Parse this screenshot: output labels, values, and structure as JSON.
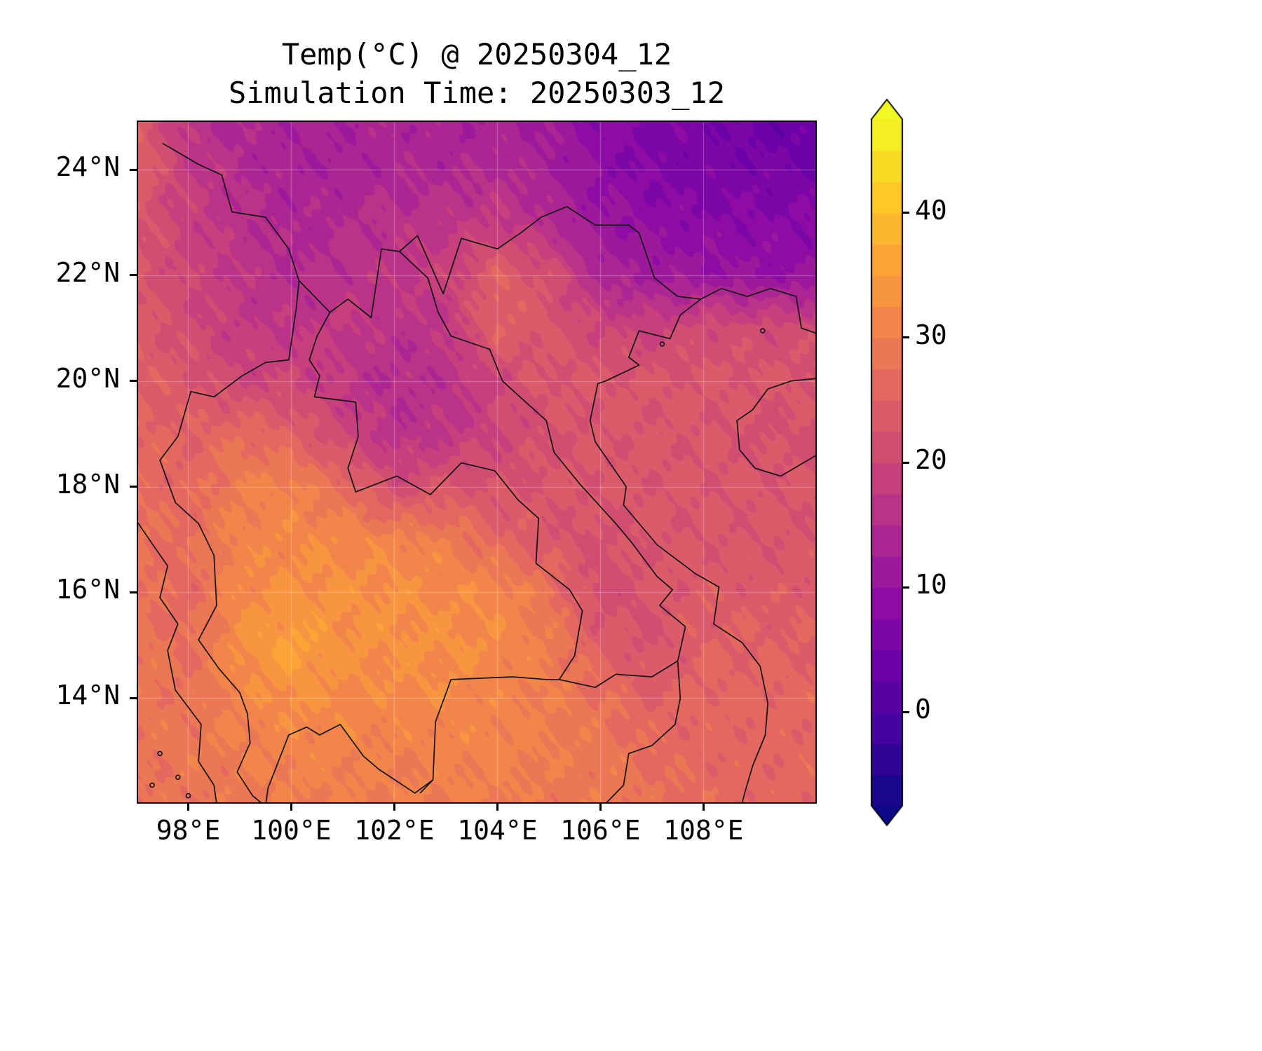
{
  "figure": {
    "background": "#ffffff"
  },
  "chart_data": {
    "type": "heatmap",
    "title": "Temp(°C) @ 20250304_12",
    "subtitle": "Simulation Time: 20250303_12",
    "xlabel": "",
    "ylabel": "",
    "grid_on": true,
    "extent": {
      "lon_min": 97.0,
      "lon_max": 110.2,
      "lat_min": 12.0,
      "lat_max": 24.93
    },
    "x_ticks": [
      {
        "lon": 98,
        "label": "98°E"
      },
      {
        "lon": 100,
        "label": "100°E"
      },
      {
        "lon": 102,
        "label": "102°E"
      },
      {
        "lon": 104,
        "label": "104°E"
      },
      {
        "lon": 106,
        "label": "106°E"
      },
      {
        "lon": 108,
        "label": "108°E"
      }
    ],
    "y_ticks": [
      {
        "lat": 14,
        "label": "14°N"
      },
      {
        "lat": 16,
        "label": "16°N"
      },
      {
        "lat": 18,
        "label": "18°N"
      },
      {
        "lat": 20,
        "label": "20°N"
      },
      {
        "lat": 22,
        "label": "22°N"
      },
      {
        "lat": 24,
        "label": "24°N"
      }
    ],
    "levels": {
      "vmin": -7.5,
      "vmax": 47.5,
      "step": 2.5,
      "extend": "both"
    },
    "colorbar": {
      "position": "right",
      "ticks": [
        {
          "value": 0,
          "label": "0"
        },
        {
          "value": 10,
          "label": "10"
        },
        {
          "value": 20,
          "label": "20"
        },
        {
          "value": 30,
          "label": "30"
        },
        {
          "value": 40,
          "label": "40"
        }
      ]
    },
    "colormap": {
      "name": "plasma",
      "anchors": [
        [
          0.0,
          "#0d0887"
        ],
        [
          0.1,
          "#41049d"
        ],
        [
          0.2,
          "#6a00a8"
        ],
        [
          0.3,
          "#8f0da4"
        ],
        [
          0.4,
          "#b12a90"
        ],
        [
          0.5,
          "#cc4778"
        ],
        [
          0.6,
          "#e16462"
        ],
        [
          0.7,
          "#f2844b"
        ],
        [
          0.8,
          "#fca636"
        ],
        [
          0.9,
          "#fcce25"
        ],
        [
          1.0,
          "#f0f921"
        ]
      ]
    },
    "grid": {
      "lons": [
        97,
        98,
        99,
        100,
        101,
        102,
        103,
        104,
        105,
        106,
        107,
        108,
        109,
        110
      ],
      "lats": [
        25,
        24,
        23,
        22,
        21,
        20,
        19,
        18,
        17,
        16,
        15,
        14,
        13,
        12
      ],
      "temps_c": [
        [
          25,
          16,
          14,
          13,
          13,
          14,
          13,
          13,
          12,
          8,
          7,
          6,
          4,
          3
        ],
        [
          25,
          18,
          15,
          13,
          13,
          14,
          14,
          15,
          13,
          9,
          7,
          6,
          6,
          5
        ],
        [
          23,
          19,
          16,
          14,
          15,
          16,
          17,
          18,
          15,
          11,
          9,
          8,
          8,
          8
        ],
        [
          23,
          20,
          17,
          15,
          16,
          17,
          19,
          25,
          22,
          14,
          12,
          11,
          10,
          10
        ],
        [
          24,
          21,
          18,
          17,
          18,
          16,
          17,
          25,
          23,
          20,
          19,
          21,
          21,
          21
        ],
        [
          25,
          23,
          20,
          20,
          17,
          15,
          16,
          20,
          23,
          23,
          23,
          23,
          23,
          23
        ],
        [
          26,
          25,
          27,
          25,
          20,
          16,
          17,
          20,
          22,
          23,
          23,
          23,
          22,
          22
        ],
        [
          27,
          26,
          30,
          31,
          27,
          21,
          23,
          22,
          23,
          23,
          23,
          23,
          23,
          23
        ],
        [
          28,
          27,
          31,
          32,
          32,
          31,
          30,
          26,
          23,
          22,
          23,
          23,
          23,
          23
        ],
        [
          28,
          26,
          32,
          33,
          33,
          33,
          32,
          32,
          28,
          21,
          23,
          24,
          24,
          24
        ],
        [
          29,
          27,
          33,
          36,
          33,
          33,
          33,
          32,
          30,
          24,
          22,
          25,
          25,
          25
        ],
        [
          29,
          28,
          31,
          33,
          32,
          32,
          32,
          31,
          30,
          28,
          25,
          26,
          26,
          26
        ],
        [
          28,
          29,
          30,
          31,
          31,
          30,
          31,
          31,
          30,
          29,
          27,
          26,
          26,
          26
        ],
        [
          28,
          28,
          29,
          30,
          30,
          30,
          30,
          30,
          29,
          29,
          28,
          27,
          26,
          26
        ]
      ]
    },
    "noise": {
      "amplitude": 1.25
    },
    "overlays": {
      "borders": [
        [
          [
            97.5,
            24.5
          ],
          [
            98.2,
            24.1
          ],
          [
            98.65,
            23.9
          ],
          [
            98.85,
            23.2
          ],
          [
            99.5,
            23.1
          ],
          [
            99.95,
            22.5
          ],
          [
            100.15,
            21.9
          ],
          [
            100.75,
            21.3
          ],
          [
            101.1,
            21.55
          ],
          [
            101.55,
            21.2
          ],
          [
            101.75,
            22.5
          ],
          [
            102.1,
            22.45
          ],
          [
            102.45,
            22.75
          ],
          [
            102.95,
            21.65
          ],
          [
            103.3,
            22.7
          ],
          [
            104.0,
            22.5
          ],
          [
            104.45,
            22.8
          ],
          [
            104.85,
            23.1
          ],
          [
            105.35,
            23.3
          ],
          [
            105.9,
            22.95
          ],
          [
            106.55,
            22.95
          ],
          [
            106.75,
            22.8
          ],
          [
            107.05,
            21.95
          ],
          [
            107.5,
            21.6
          ],
          [
            107.95,
            21.55
          ]
        ],
        [
          [
            100.15,
            21.9
          ],
          [
            100.1,
            21.4
          ],
          [
            99.95,
            20.4
          ],
          [
            99.5,
            20.35
          ],
          [
            99.05,
            20.1
          ],
          [
            98.5,
            19.7
          ],
          [
            98.05,
            19.8
          ],
          [
            97.8,
            18.95
          ],
          [
            97.45,
            18.5
          ],
          [
            97.75,
            17.7
          ],
          [
            98.2,
            17.3
          ],
          [
            98.5,
            16.7
          ],
          [
            98.55,
            15.75
          ],
          [
            98.2,
            15.1
          ],
          [
            98.6,
            14.55
          ],
          [
            99.0,
            14.1
          ],
          [
            99.15,
            13.7
          ],
          [
            99.2,
            13.15
          ],
          [
            98.95,
            12.6
          ],
          [
            99.25,
            12.15
          ],
          [
            99.5,
            11.95
          ]
        ],
        [
          [
            100.75,
            21.3
          ],
          [
            100.5,
            20.85
          ],
          [
            100.35,
            20.4
          ],
          [
            100.55,
            20.1
          ],
          [
            100.45,
            19.7
          ],
          [
            101.25,
            19.6
          ],
          [
            101.3,
            18.95
          ],
          [
            101.1,
            18.35
          ],
          [
            101.25,
            17.9
          ],
          [
            102.05,
            18.2
          ],
          [
            102.7,
            17.85
          ],
          [
            103.3,
            18.45
          ],
          [
            103.95,
            18.3
          ],
          [
            104.4,
            17.75
          ],
          [
            104.8,
            17.4
          ],
          [
            104.75,
            16.55
          ],
          [
            105.4,
            16.05
          ],
          [
            105.65,
            15.65
          ],
          [
            105.5,
            14.8
          ],
          [
            105.2,
            14.35
          ]
        ],
        [
          [
            102.1,
            22.45
          ],
          [
            102.65,
            21.95
          ],
          [
            102.85,
            21.3
          ],
          [
            103.1,
            20.85
          ],
          [
            103.85,
            20.6
          ],
          [
            104.1,
            20.0
          ],
          [
            104.55,
            19.6
          ],
          [
            104.95,
            19.25
          ],
          [
            105.1,
            18.65
          ],
          [
            105.6,
            18.05
          ],
          [
            106.3,
            17.3
          ],
          [
            106.6,
            16.95
          ],
          [
            107.1,
            16.3
          ],
          [
            107.4,
            16.05
          ],
          [
            107.15,
            15.75
          ],
          [
            107.65,
            15.35
          ],
          [
            107.5,
            14.7
          ]
        ],
        [
          [
            102.5,
            12.2
          ],
          [
            102.75,
            12.45
          ],
          [
            102.8,
            13.55
          ],
          [
            103.1,
            14.35
          ],
          [
            104.3,
            14.4
          ],
          [
            104.95,
            14.35
          ],
          [
            105.2,
            14.35
          ]
        ],
        [
          [
            105.2,
            14.35
          ],
          [
            105.9,
            14.2
          ],
          [
            106.3,
            14.45
          ],
          [
            107.0,
            14.4
          ],
          [
            107.5,
            14.7
          ]
        ],
        [
          [
            107.5,
            14.7
          ],
          [
            107.55,
            14.0
          ],
          [
            107.45,
            13.5
          ],
          [
            107.0,
            13.1
          ],
          [
            106.55,
            12.95
          ],
          [
            106.45,
            12.35
          ],
          [
            106.1,
            12.0
          ]
        ]
      ],
      "coastlines": [
        [
          [
            107.95,
            21.55
          ],
          [
            107.55,
            21.25
          ],
          [
            107.35,
            20.8
          ],
          [
            106.75,
            20.95
          ],
          [
            106.55,
            20.45
          ],
          [
            106.75,
            20.3
          ],
          [
            106.1,
            20.0
          ],
          [
            105.95,
            19.95
          ],
          [
            105.8,
            19.25
          ],
          [
            105.9,
            18.85
          ],
          [
            106.5,
            18.0
          ],
          [
            106.45,
            17.65
          ],
          [
            107.1,
            16.9
          ],
          [
            107.85,
            16.35
          ],
          [
            108.3,
            16.1
          ],
          [
            108.2,
            15.4
          ],
          [
            108.75,
            15.05
          ],
          [
            109.1,
            14.6
          ],
          [
            109.25,
            13.9
          ],
          [
            109.2,
            13.3
          ],
          [
            108.95,
            12.7
          ],
          [
            108.8,
            12.2
          ],
          [
            108.75,
            12.0
          ]
        ],
        [
          [
            107.95,
            21.55
          ],
          [
            108.35,
            21.75
          ],
          [
            108.85,
            21.6
          ],
          [
            109.3,
            21.75
          ],
          [
            109.8,
            21.6
          ],
          [
            109.9,
            21.0
          ],
          [
            110.2,
            20.9
          ]
        ],
        [
          [
            110.2,
            20.05
          ],
          [
            109.7,
            20.0
          ],
          [
            109.25,
            19.85
          ],
          [
            108.95,
            19.45
          ],
          [
            108.65,
            19.25
          ],
          [
            108.7,
            18.7
          ],
          [
            109.0,
            18.35
          ],
          [
            109.5,
            18.2
          ],
          [
            110.2,
            18.6
          ]
        ],
        [
          [
            97.0,
            17.35
          ],
          [
            97.35,
            16.85
          ],
          [
            97.6,
            16.5
          ],
          [
            97.45,
            15.9
          ],
          [
            97.8,
            15.4
          ],
          [
            97.6,
            14.9
          ],
          [
            97.75,
            14.15
          ],
          [
            98.25,
            13.5
          ],
          [
            98.2,
            12.8
          ],
          [
            98.5,
            12.35
          ],
          [
            98.55,
            12.0
          ]
        ],
        [
          [
            99.5,
            11.95
          ],
          [
            99.55,
            12.3
          ],
          [
            99.95,
            13.3
          ],
          [
            100.3,
            13.45
          ],
          [
            100.55,
            13.3
          ],
          [
            100.95,
            13.5
          ],
          [
            101.4,
            12.9
          ],
          [
            101.7,
            12.65
          ],
          [
            102.4,
            12.2
          ],
          [
            102.75,
            12.45
          ]
        ]
      ],
      "islands": [
        [
          97.45,
          12.95
        ],
        [
          97.8,
          12.5
        ],
        [
          98.0,
          12.15
        ],
        [
          97.3,
          12.35
        ],
        [
          109.15,
          20.95
        ],
        [
          107.2,
          20.7
        ]
      ]
    }
  }
}
